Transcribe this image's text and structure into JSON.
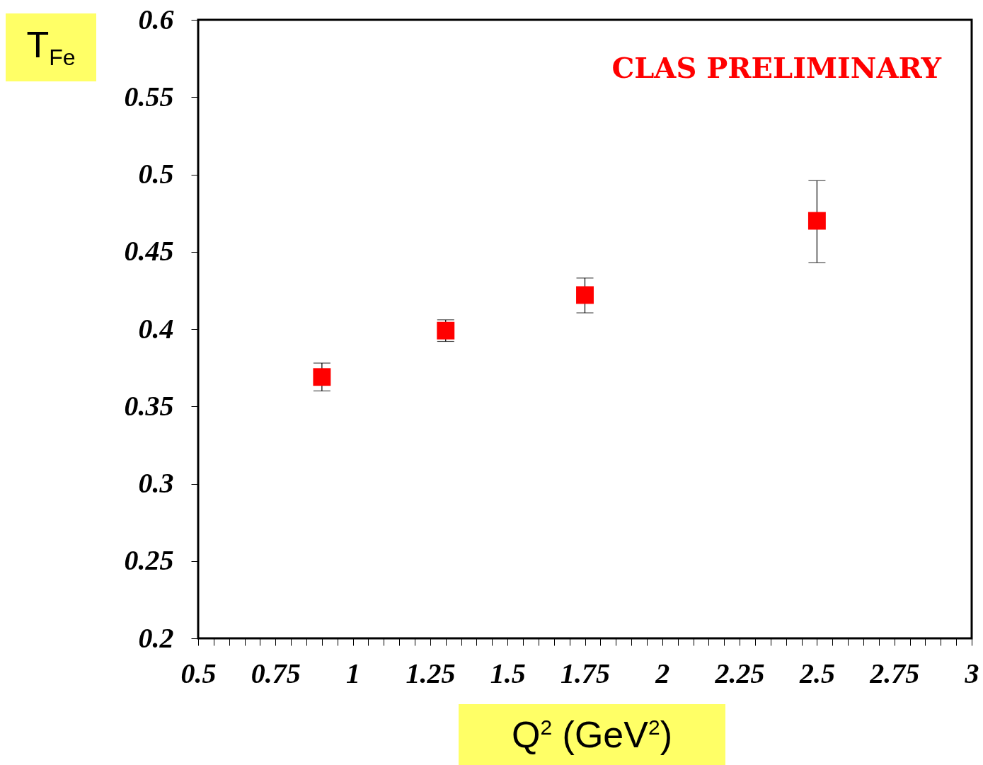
{
  "chart_data": {
    "type": "scatter",
    "xlabel": "Q$^{2}$ (GeV$^{2}$)",
    "ylabel": "T$_{Fe}$",
    "annotations": [
      "CLAS PRELIMINARY"
    ],
    "x": [
      0.9,
      1.3,
      1.75,
      2.5
    ],
    "series": [
      {
        "color": "#ff0000",
        "values": [
          0.369,
          0.399,
          0.422,
          0.47
        ],
        "errors": [
          [
            0.36,
            0.378
          ],
          [
            0.392,
            0.406
          ],
          [
            0.4105,
            0.433
          ],
          [
            0.443,
            0.496
          ]
        ]
      }
    ],
    "marker": "square",
    "xlim": [
      0.5,
      3
    ],
    "ylim": [
      0.2,
      0.6
    ],
    "xticks": [
      0.5,
      {
        "value": 0.55,
        "label": null
      },
      {
        "value": 0.6,
        "label": null
      },
      {
        "value": 0.65,
        "label": null
      },
      {
        "value": 0.7,
        "label": null
      },
      0.75,
      {
        "value": 0.8,
        "label": null
      },
      {
        "value": 0.85,
        "label": null
      },
      {
        "value": 0.9,
        "label": null
      },
      {
        "value": 0.95,
        "label": null
      },
      1,
      {
        "value": 1.05,
        "label": null
      },
      {
        "value": 1.1,
        "label": null
      },
      {
        "value": 1.15,
        "label": null
      },
      {
        "value": 1.2,
        "label": null
      },
      1.25,
      {
        "value": 1.3,
        "label": null
      },
      {
        "value": 1.35,
        "label": null
      },
      {
        "value": 1.4,
        "label": null
      },
      {
        "value": 1.45,
        "label": null
      },
      1.5,
      {
        "value": 1.55,
        "label": null
      },
      {
        "value": 1.6,
        "label": null
      },
      {
        "value": 1.65,
        "label": null
      },
      {
        "value": 1.7,
        "label": null
      },
      1.75,
      {
        "value": 1.8,
        "label": null
      },
      {
        "value": 1.85,
        "label": null
      },
      {
        "value": 1.9,
        "label": null
      },
      {
        "value": 1.95,
        "label": null
      },
      2,
      {
        "value": 2.05,
        "label": null
      },
      {
        "value": 2.1,
        "label": null
      },
      {
        "value": 2.15,
        "label": null
      },
      {
        "value": 2.2,
        "label": null
      },
      2.25,
      {
        "value": 2.3,
        "label": null
      },
      {
        "value": 2.35,
        "label": null
      },
      {
        "value": 2.4,
        "label": null
      },
      {
        "value": 2.45,
        "label": null
      },
      2.5,
      {
        "value": 2.55,
        "label": null
      },
      {
        "value": 2.6,
        "label": null
      },
      {
        "value": 2.65,
        "label": null
      },
      {
        "value": 2.7,
        "label": null
      },
      2.75,
      {
        "value": 2.8,
        "label": null
      },
      {
        "value": 2.85,
        "label": null
      },
      {
        "value": 2.9,
        "label": null
      },
      {
        "value": 2.95,
        "label": null
      },
      3
    ],
    "yticks": [
      0.2,
      0.25,
      0.3,
      0.35,
      0.4,
      0.45,
      0.5,
      0.55,
      0.6
    ],
    "grid": false
  }
}
